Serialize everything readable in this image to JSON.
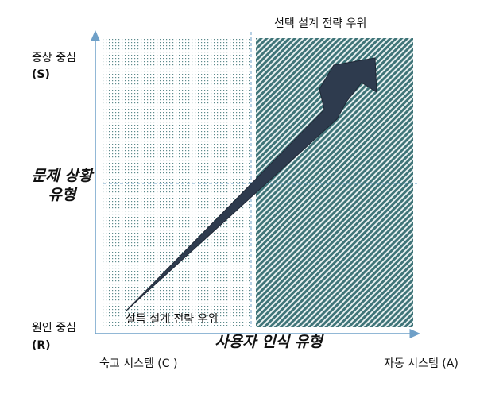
{
  "top_right_label": "선택 설계 전략 우위",
  "bottom_left_label": "설득 설계 전략 우위",
  "y_axis": {
    "top": [
      "증상 중심",
      "(S)"
    ],
    "bottom": [
      "원인 중심",
      "(R)"
    ],
    "title": [
      "문제 상황",
      "유형"
    ]
  },
  "x_axis": {
    "left": "숙고 시스템 (C )",
    "right": "자동 시스템 (A)",
    "title": "사용자 인식 유형"
  }
}
